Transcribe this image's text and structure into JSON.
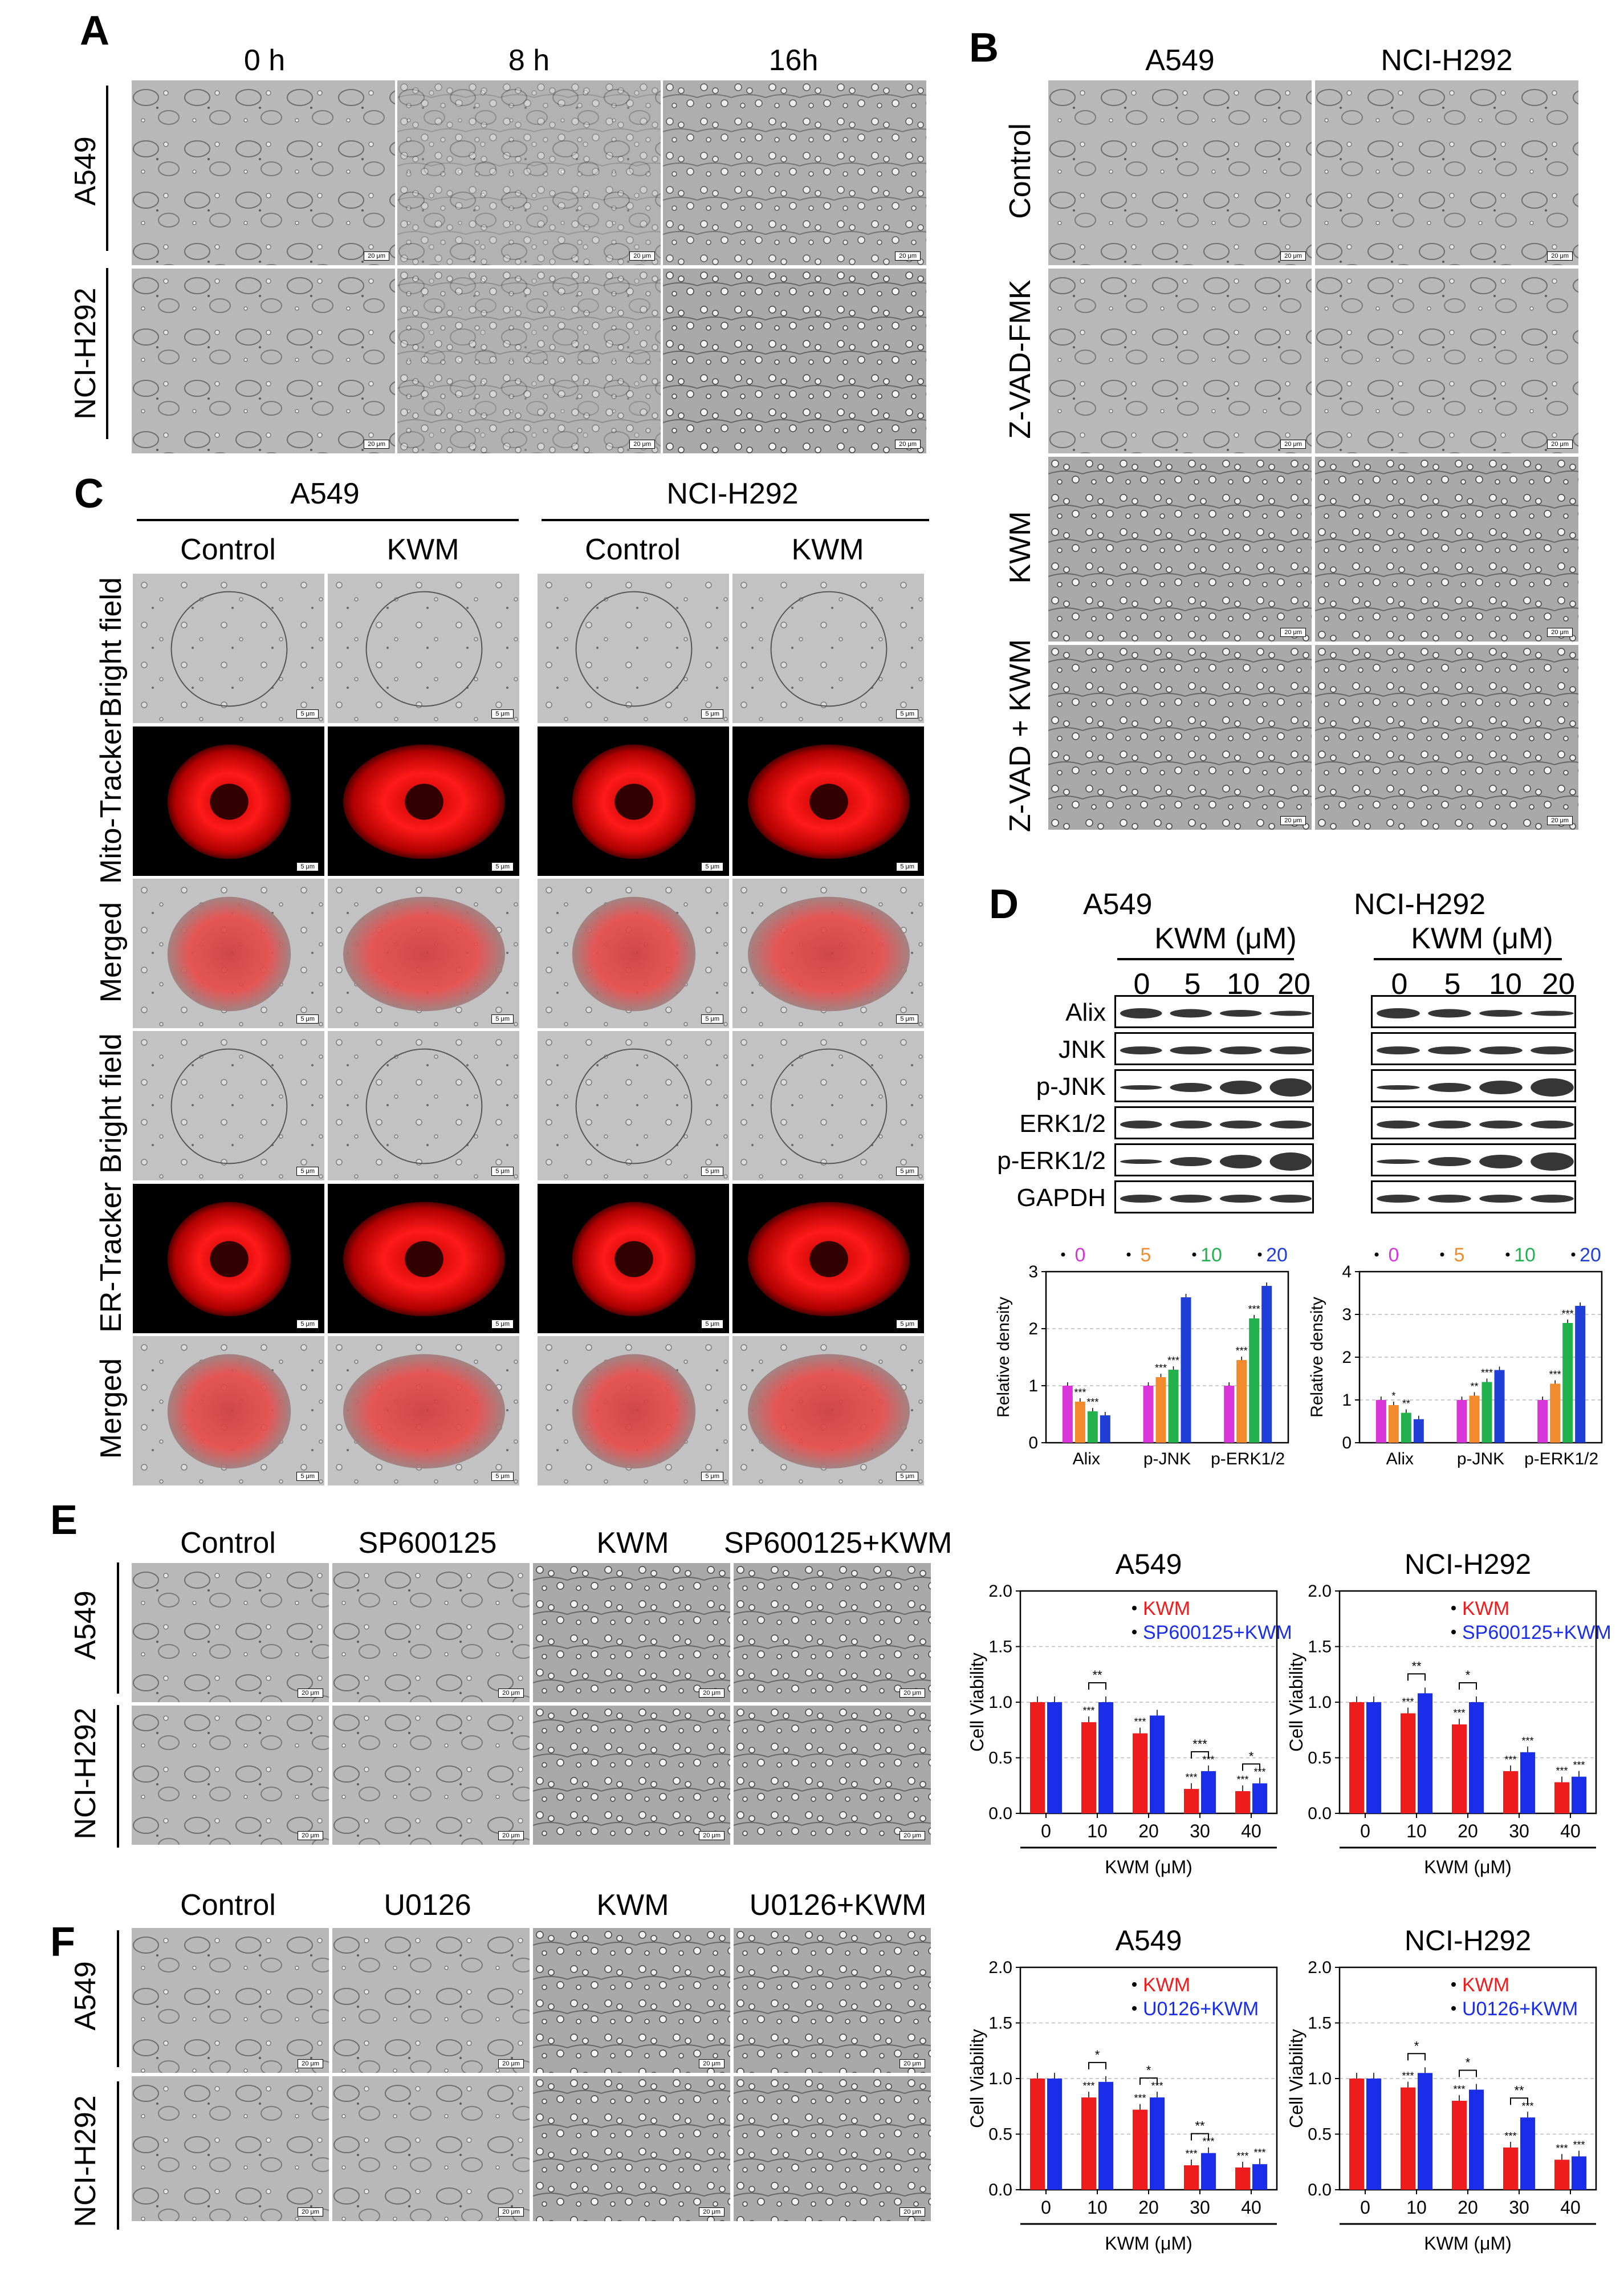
{
  "panelA": {
    "label": "A",
    "columns": [
      "0 h",
      "8 h",
      "16h"
    ],
    "rows": [
      "A549",
      "NCI-H292"
    ],
    "scale": "20 μm"
  },
  "panelB": {
    "label": "B",
    "columns": [
      "A549",
      "NCI-H292"
    ],
    "rows": [
      "Control",
      "Z-VAD-FMK",
      "KWM",
      "Z-VAD + KWM"
    ],
    "scale": "20 μm"
  },
  "panelC": {
    "label": "C",
    "groups": [
      "A549",
      "NCI-H292"
    ],
    "columns": [
      "Control",
      "KWM",
      "Control",
      "KWM"
    ],
    "rows": [
      "Bright field",
      "Mito-Tracker",
      "Merged",
      "Bright field",
      "ER-Tracker",
      "Merged"
    ],
    "scale": "5 μm"
  },
  "panelD": {
    "label": "D",
    "groups": [
      "A549",
      "NCI-H292"
    ],
    "treatment": "KWM (μM)",
    "doses": [
      "0",
      "5",
      "10",
      "20"
    ],
    "proteins": [
      "Alix",
      "JNK",
      "p-JNK",
      "ERK1/2",
      "p-ERK1/2",
      "GAPDH"
    ]
  },
  "panelE": {
    "label": "E",
    "columns": [
      "Control",
      "SP600125",
      "KWM",
      "SP600125+KWM"
    ],
    "rows": [
      "A549",
      "NCI-H292"
    ],
    "scale": "20 μm"
  },
  "panelF": {
    "label": "F",
    "columns": [
      "Control",
      "U0126",
      "KWM",
      "U0126+KWM"
    ],
    "rows": [
      "A549",
      "NCI-H292"
    ],
    "scale": "20 μm"
  },
  "colors": {
    "dose0": "#d936d9",
    "dose5": "#f28a2e",
    "dose10": "#22b14c",
    "dose20": "#1f3fd6",
    "kwm": "#ee1c1c",
    "combo": "#1a2eea"
  },
  "chart_data": [
    {
      "id": "D-A549",
      "type": "bar",
      "ylabel": "Relative density",
      "categories": [
        "Alix",
        "p-JNK",
        "p-ERK1/2"
      ],
      "legend": [
        "0",
        "5",
        "10",
        "20"
      ],
      "yticks": [
        "0",
        "1",
        "2",
        "3"
      ],
      "ylim": [
        0,
        3
      ],
      "series": [
        {
          "name": "0",
          "values": [
            1.0,
            1.0,
            1.0
          ]
        },
        {
          "name": "5",
          "values": [
            0.72,
            1.15,
            1.45
          ]
        },
        {
          "name": "10",
          "values": [
            0.55,
            1.28,
            2.18
          ]
        },
        {
          "name": "20",
          "values": [
            0.48,
            2.55,
            2.75
          ]
        }
      ],
      "marks": [
        [
          "***",
          "***",
          "***"
        ],
        [
          "***",
          "***",
          "***"
        ],
        [
          "***",
          "***",
          "***"
        ]
      ]
    },
    {
      "id": "D-H292",
      "type": "bar",
      "ylabel": "Relative density",
      "categories": [
        "Alix",
        "p-JNK",
        "p-ERK1/2"
      ],
      "legend": [
        "0",
        "5",
        "10",
        "20"
      ],
      "yticks": [
        "0",
        "1",
        "2",
        "3",
        "4"
      ],
      "ylim": [
        0,
        4
      ],
      "series": [
        {
          "name": "0",
          "values": [
            1.0,
            1.0,
            1.0
          ]
        },
        {
          "name": "5",
          "values": [
            0.88,
            1.1,
            1.38
          ]
        },
        {
          "name": "10",
          "values": [
            0.7,
            1.42,
            2.8
          ]
        },
        {
          "name": "20",
          "values": [
            0.55,
            1.7,
            3.2
          ]
        }
      ],
      "marks": [
        [
          "*",
          "*",
          "**"
        ],
        [
          "",
          "**",
          "***"
        ],
        [
          "***",
          "***",
          "***"
        ]
      ]
    },
    {
      "id": "E-A549",
      "type": "bar",
      "title": "A549",
      "xlabel": "KWM (μM)",
      "ylabel": "Cell Viability",
      "categories": [
        "0",
        "10",
        "20",
        "30",
        "40"
      ],
      "yticks": [
        "0.0",
        "0.5",
        "1.0",
        "1.5",
        "2.0"
      ],
      "ylim": [
        0,
        2
      ],
      "series": [
        {
          "name": "KWM",
          "values": [
            1.0,
            0.82,
            0.72,
            0.22,
            0.2
          ]
        },
        {
          "name": "SP600125+KWM",
          "values": [
            1.0,
            1.0,
            0.88,
            0.38,
            0.27
          ]
        }
      ],
      "marks": [
        [
          "",
          "***",
          "***",
          "***",
          "***"
        ],
        [
          "",
          "",
          "",
          "***",
          "***"
        ]
      ],
      "brackets": [
        "",
        "**",
        "",
        "***",
        "*"
      ]
    },
    {
      "id": "E-H292",
      "type": "bar",
      "title": "NCI-H292",
      "xlabel": "KWM (μM)",
      "ylabel": "Cell Viability",
      "categories": [
        "0",
        "10",
        "20",
        "30",
        "40"
      ],
      "yticks": [
        "0.0",
        "0.5",
        "1.0",
        "1.5",
        "2.0"
      ],
      "ylim": [
        0,
        2
      ],
      "series": [
        {
          "name": "KWM",
          "values": [
            1.0,
            0.9,
            0.8,
            0.38,
            0.28
          ]
        },
        {
          "name": "SP600125+KWM",
          "values": [
            1.0,
            1.08,
            1.0,
            0.55,
            0.33
          ]
        }
      ],
      "marks": [
        [
          "",
          "***",
          "***",
          "***",
          "***"
        ],
        [
          "",
          "",
          "",
          "***",
          "***"
        ]
      ],
      "brackets": [
        "",
        "**",
        "*",
        "",
        ""
      ]
    },
    {
      "id": "F-A549",
      "type": "bar",
      "title": "A549",
      "xlabel": "KWM (μM)",
      "ylabel": "Cell Viability",
      "categories": [
        "0",
        "10",
        "20",
        "30",
        "40"
      ],
      "yticks": [
        "0.0",
        "0.5",
        "1.0",
        "1.5",
        "2.0"
      ],
      "ylim": [
        0,
        2
      ],
      "series": [
        {
          "name": "KWM",
          "values": [
            1.0,
            0.83,
            0.72,
            0.22,
            0.2
          ]
        },
        {
          "name": "U0126+KWM",
          "values": [
            1.0,
            0.97,
            0.83,
            0.33,
            0.23
          ]
        }
      ],
      "marks": [
        [
          "",
          "***",
          "***",
          "***",
          "***"
        ],
        [
          "",
          "",
          "***",
          "***",
          "***"
        ]
      ],
      "brackets": [
        "",
        "*",
        "*",
        "**",
        ""
      ]
    },
    {
      "id": "F-H292",
      "type": "bar",
      "title": "NCI-H292",
      "xlabel": "KWM (μM)",
      "ylabel": "Cell Viability",
      "categories": [
        "0",
        "10",
        "20",
        "30",
        "40"
      ],
      "yticks": [
        "0.0",
        "0.5",
        "1.0",
        "1.5",
        "2.0"
      ],
      "ylim": [
        0,
        2
      ],
      "series": [
        {
          "name": "KWM",
          "values": [
            1.0,
            0.92,
            0.8,
            0.38,
            0.27
          ]
        },
        {
          "name": "U0126+KWM",
          "values": [
            1.0,
            1.05,
            0.9,
            0.65,
            0.3
          ]
        }
      ],
      "marks": [
        [
          "",
          "***",
          "***",
          "***",
          "***"
        ],
        [
          "",
          "",
          "",
          "***",
          "***"
        ]
      ],
      "brackets": [
        "",
        "*",
        "*",
        "**",
        ""
      ]
    }
  ]
}
